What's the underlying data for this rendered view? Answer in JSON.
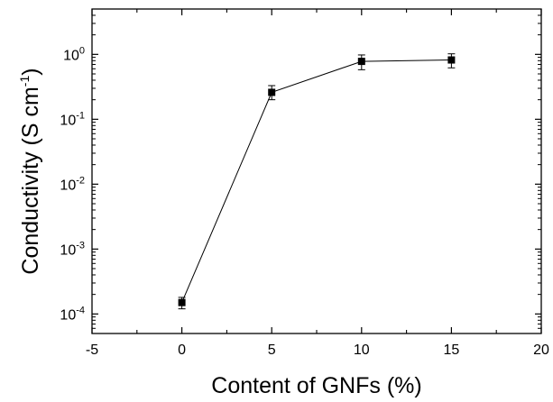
{
  "chart_data": {
    "type": "scatter",
    "title": "",
    "xlabel": "Content of GNFs (%)",
    "ylabel": {
      "main": "Conductivity (S cm",
      "superscript": "-1",
      "close": ")"
    },
    "x_scale": "linear",
    "y_scale": "log",
    "xlim": [
      -5,
      20
    ],
    "ylim": [
      5e-05,
      5
    ],
    "x_ticks": [
      {
        "value": -5,
        "label": "-5"
      },
      {
        "value": 0,
        "label": "0"
      },
      {
        "value": 5,
        "label": "5"
      },
      {
        "value": 10,
        "label": "10"
      },
      {
        "value": 15,
        "label": "15"
      },
      {
        "value": 20,
        "label": "20"
      }
    ],
    "y_ticks": [
      {
        "value": 0.0001,
        "base": "10",
        "exp": "-4"
      },
      {
        "value": 0.001,
        "base": "10",
        "exp": "-3"
      },
      {
        "value": 0.01,
        "base": "10",
        "exp": "-2"
      },
      {
        "value": 0.1,
        "base": "10",
        "exp": "-1"
      },
      {
        "value": 1,
        "base": "10",
        "exp": "0"
      }
    ],
    "grid": false,
    "marker": "square",
    "line": true,
    "color": "#000000",
    "series": [
      {
        "x": [
          0,
          5,
          10,
          15
        ],
        "y": [
          0.00015,
          0.26,
          0.78,
          0.82
        ],
        "y_err_low": [
          0.00012,
          0.2,
          0.58,
          0.62
        ],
        "y_err_high": [
          0.00018,
          0.33,
          0.98,
          1.02
        ]
      }
    ]
  }
}
